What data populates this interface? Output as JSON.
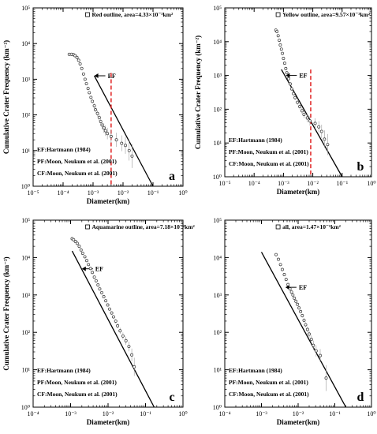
{
  "chart_data": [
    {
      "panel": "a",
      "type": "scatter",
      "scale": "log-log",
      "xlabel": "Diameter(km)",
      "ylabel": "Cumulative Crater Frequency (km⁻²)",
      "xlim": [
        1e-05,
        1
      ],
      "ylim": [
        1,
        100000
      ],
      "x_tick_labels": [
        "10⁻⁵",
        "10⁻⁴",
        "10⁻³",
        "10⁻²",
        "10⁻¹",
        "10⁰"
      ],
      "y_tick_labels": [
        "10⁰",
        "10¹",
        "10²",
        "10³",
        "10⁴",
        "10⁵"
      ],
      "legend": "Red outline, area=4.33×10⁻³km²",
      "annotations": [
        "EF:Hartmann (1984)",
        "PF:Moon, Neukum et al. (2001)",
        "CF:Moon, Neukum et al. (2001)"
      ],
      "ef_label": "EF",
      "corner_label": "a",
      "ef_arrow_at": [
        0.0011,
        1250
      ],
      "dashed_line_x": 0.004,
      "dashed_line_color": "#e02020",
      "ef_line": [
        [
          0.0011,
          1250
        ],
        [
          0.1,
          1
        ]
      ],
      "points": [
        [
          0.00016,
          5000
        ],
        [
          0.00019,
          5000
        ],
        [
          0.00022,
          4900
        ],
        [
          0.00025,
          4600
        ],
        [
          0.00029,
          4100
        ],
        [
          0.00033,
          3400
        ],
        [
          0.00037,
          2700
        ],
        [
          0.00042,
          2000
        ],
        [
          0.00048,
          1400
        ],
        [
          0.00054,
          1000
        ],
        [
          0.0006,
          750
        ],
        [
          0.00068,
          550
        ],
        [
          0.00075,
          420
        ],
        [
          0.00085,
          310
        ],
        [
          0.00095,
          240
        ],
        [
          0.0011,
          180
        ],
        [
          0.0012,
          140
        ],
        [
          0.0014,
          110
        ],
        [
          0.0016,
          85
        ],
        [
          0.0018,
          65
        ],
        [
          0.002,
          52
        ],
        [
          0.0023,
          43
        ],
        [
          0.0026,
          36
        ],
        [
          0.003,
          30
        ],
        [
          0.004,
          25
        ],
        [
          0.006,
          20
        ],
        [
          0.009,
          16
        ],
        [
          0.012,
          14
        ],
        [
          0.016,
          10
        ],
        [
          0.02,
          7
        ]
      ]
    },
    {
      "panel": "b",
      "type": "scatter",
      "scale": "log-log",
      "xlabel": "Diameter(km)",
      "ylabel": "Cumulative Crater Frequency (km⁻²)",
      "xlim": [
        1e-05,
        1
      ],
      "ylim": [
        1,
        100000
      ],
      "x_tick_labels": [
        "10⁻⁵",
        "10⁻⁴",
        "10⁻³",
        "10⁻²",
        "10⁻¹",
        "10⁰"
      ],
      "y_tick_labels": [
        "10⁰",
        "10¹",
        "10²",
        "10³",
        "10⁴",
        "10⁵"
      ],
      "legend": "Yellow outline, area=9.57×10⁻³km²",
      "annotations": [
        "EF:Hartmann (1984)",
        "PF:Moon, Neukum et al. (2001)",
        "CF:Moon, Neukum et al. (2001)"
      ],
      "ef_label": "EF",
      "corner_label": "b",
      "ef_arrow_at": [
        0.0012,
        1000
      ],
      "dashed_line_x": 0.0085,
      "dashed_line_color": "#e02020",
      "ef_line": [
        [
          0.00085,
          1500
        ],
        [
          0.1,
          1
        ]
      ],
      "points": [
        [
          0.00055,
          22000
        ],
        [
          0.0006,
          20000
        ],
        [
          0.00066,
          15000
        ],
        [
          0.00072,
          11000
        ],
        [
          0.00078,
          8000
        ],
        [
          0.00085,
          6000
        ],
        [
          0.00092,
          4500
        ],
        [
          0.001,
          3200
        ],
        [
          0.0011,
          2300
        ],
        [
          0.0012,
          1600
        ],
        [
          0.0013,
          1200
        ],
        [
          0.0015,
          800
        ],
        [
          0.0017,
          560
        ],
        [
          0.0019,
          400
        ],
        [
          0.0022,
          290
        ],
        [
          0.0025,
          220
        ],
        [
          0.003,
          160
        ],
        [
          0.0036,
          120
        ],
        [
          0.0043,
          90
        ],
        [
          0.005,
          70
        ],
        [
          0.0065,
          55
        ],
        [
          0.008,
          45
        ],
        [
          0.012,
          38
        ],
        [
          0.016,
          30
        ],
        [
          0.02,
          22
        ],
        [
          0.025,
          13
        ],
        [
          0.032,
          9
        ]
      ]
    },
    {
      "panel": "c",
      "type": "scatter",
      "scale": "log-log",
      "xlabel": "Diameter(km)",
      "ylabel": "Cumulative Crater Frequency (km⁻²)",
      "xlim": [
        0.0001,
        1
      ],
      "ylim": [
        1,
        100000
      ],
      "x_tick_labels": [
        "10⁻⁴",
        "10⁻³",
        "10⁻²",
        "10⁻¹",
        "10⁰"
      ],
      "y_tick_labels": [
        "10⁰",
        "10¹",
        "10²",
        "10³",
        "10⁴",
        "10⁵"
      ],
      "legend": "Aquamarine outline, area=7.18×10⁻²km²",
      "annotations": [
        "EF:Hartmann (1984)",
        "PF:Moon, Neukum et al. (2001)",
        "CF:Moon, Neukum et al. (2001)"
      ],
      "ef_label": "EF",
      "corner_label": "c",
      "ef_arrow_at": [
        0.002,
        5000
      ],
      "ef_line": [
        [
          0.0011,
          15000
        ],
        [
          0.17,
          1
        ]
      ],
      "points": [
        [
          0.0011,
          32000
        ],
        [
          0.0012,
          30000
        ],
        [
          0.00135,
          27000
        ],
        [
          0.0015,
          24000
        ],
        [
          0.0017,
          20000
        ],
        [
          0.0019,
          16000
        ],
        [
          0.0021,
          13000
        ],
        [
          0.0024,
          10500
        ],
        [
          0.0027,
          8300
        ],
        [
          0.003,
          6500
        ],
        [
          0.0034,
          5100
        ],
        [
          0.0038,
          4000
        ],
        [
          0.0043,
          3000
        ],
        [
          0.0048,
          2400
        ],
        [
          0.0054,
          1850
        ],
        [
          0.006,
          1450
        ],
        [
          0.0068,
          1150
        ],
        [
          0.0077,
          900
        ],
        [
          0.0087,
          700
        ],
        [
          0.0098,
          540
        ],
        [
          0.011,
          420
        ],
        [
          0.0125,
          330
        ],
        [
          0.014,
          260
        ],
        [
          0.016,
          200
        ],
        [
          0.018,
          150
        ],
        [
          0.021,
          110
        ],
        [
          0.025,
          80
        ],
        [
          0.03,
          60
        ],
        [
          0.036,
          42
        ],
        [
          0.043,
          25
        ],
        [
          0.05,
          12
        ]
      ]
    },
    {
      "panel": "d",
      "type": "scatter",
      "scale": "log-log",
      "xlabel": "Diameter(km)",
      "ylabel": "",
      "xlim": [
        0.0001,
        1
      ],
      "ylim": [
        1,
        100000
      ],
      "x_tick_labels": [
        "10⁻⁴",
        "10⁻³",
        "10⁻²",
        "10⁻¹",
        "10⁰"
      ],
      "y_tick_labels": [
        "10⁰",
        "10¹",
        "10²",
        "10³",
        "10⁴",
        "10⁵"
      ],
      "legend": "all, area=1.47×10⁻¹km²",
      "annotations": [
        "EF:Hartmann (1984)",
        "PF:Moon, Neukum et al. (2001)",
        "CF:Moon, Neukum et al. (2001)"
      ],
      "ef_label": "EF",
      "corner_label": "d",
      "ef_arrow_at": [
        0.0045,
        1600
      ],
      "ef_line": [
        [
          0.001,
          14000
        ],
        [
          0.2,
          1
        ]
      ],
      "points": [
        [
          0.0025,
          12000
        ],
        [
          0.0029,
          9000
        ],
        [
          0.0033,
          6500
        ],
        [
          0.0037,
          4800
        ],
        [
          0.0042,
          3500
        ],
        [
          0.0047,
          2600
        ],
        [
          0.0053,
          1900
        ],
        [
          0.006,
          1450
        ],
        [
          0.0066,
          1200
        ],
        [
          0.0072,
          1000
        ],
        [
          0.0079,
          820
        ],
        [
          0.0087,
          680
        ],
        [
          0.0096,
          560
        ],
        [
          0.0106,
          450
        ],
        [
          0.0117,
          360
        ],
        [
          0.013,
          280
        ],
        [
          0.0145,
          210
        ],
        [
          0.016,
          160
        ],
        [
          0.018,
          120
        ],
        [
          0.02,
          90
        ],
        [
          0.023,
          65
        ],
        [
          0.026,
          45
        ],
        [
          0.031,
          32
        ],
        [
          0.04,
          24
        ],
        [
          0.058,
          6
        ]
      ]
    }
  ]
}
